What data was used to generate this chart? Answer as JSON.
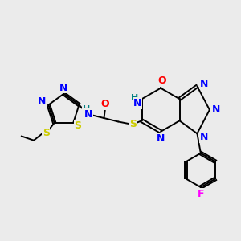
{
  "bg_color": "#ebebeb",
  "atom_colors": {
    "C": "#000000",
    "N": "#0000ff",
    "O": "#ff0000",
    "S": "#cccc00",
    "F": "#ff00ff",
    "H": "#008080"
  },
  "lw": 1.4,
  "fs": 9,
  "fs_small": 8
}
